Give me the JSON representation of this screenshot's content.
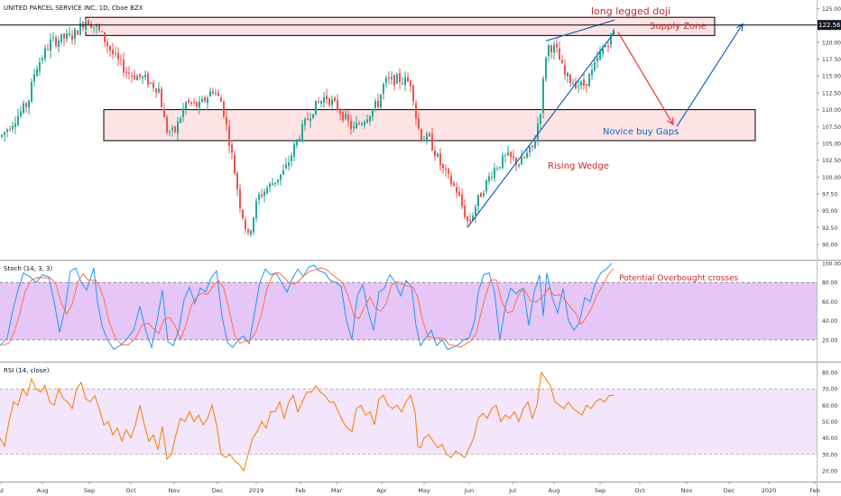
{
  "chart_data": {
    "type": "candlestick",
    "symbol_title": "UNITED PARCEL SERVICE INC, 1D, Cboe BZX",
    "last_price": "122.56",
    "colors": {
      "up": "#26a69a",
      "down": "#ef5350",
      "zone_fill": "#fde3e3",
      "zone_stroke": "#000000",
      "trend_line": "#1565c0",
      "red_arrow": "#e53935",
      "annotation_red": "#c62828",
      "annotation_blue": "#1565c0",
      "stoch_k": "#2196f3",
      "stoch_d": "#ff7043",
      "stoch_band": "#e6c6f7",
      "rsi_line": "#f57c00",
      "rsi_band": "#f3e5fb"
    },
    "x_axis": {
      "ticks": [
        "Jul",
        "Aug",
        "Sep",
        "Oct",
        "Nov",
        "Dec",
        "2019",
        "Feb",
        "Mar",
        "Apr",
        "May",
        "Jun",
        "Jul",
        "Aug",
        "Sep",
        "Oct",
        "Nov",
        "Dec",
        "2020",
        "Feb"
      ]
    },
    "price_panel": {
      "ylim": [
        88,
        126
      ],
      "y_ticks": [
        "125.00",
        "122.50",
        "120.00",
        "117.50",
        "115.00",
        "112.50",
        "110.00",
        "107.50",
        "105.00",
        "102.50",
        "100.00",
        "97.50",
        "95.00",
        "92.50",
        "90.00"
      ],
      "anchors": [
        [
          0,
          106
        ],
        [
          30,
          111
        ],
        [
          38,
          116
        ],
        [
          55,
          120
        ],
        [
          80,
          121
        ],
        [
          95,
          123.5
        ],
        [
          110,
          121.5
        ],
        [
          125,
          118
        ],
        [
          140,
          115.5
        ],
        [
          160,
          114.5
        ],
        [
          175,
          113
        ],
        [
          183,
          107
        ],
        [
          192,
          106.5
        ],
        [
          205,
          111
        ],
        [
          220,
          110.5
        ],
        [
          235,
          113
        ],
        [
          245,
          111
        ],
        [
          255,
          104
        ],
        [
          265,
          96
        ],
        [
          274,
          91
        ],
        [
          285,
          97
        ],
        [
          300,
          99
        ],
        [
          315,
          101
        ],
        [
          330,
          106
        ],
        [
          345,
          110
        ],
        [
          360,
          112
        ],
        [
          375,
          110
        ],
        [
          390,
          107
        ],
        [
          405,
          109
        ],
        [
          418,
          111
        ],
        [
          425,
          114
        ],
        [
          440,
          114.5
        ],
        [
          455,
          114
        ],
        [
          460,
          109
        ],
        [
          465,
          106
        ],
        [
          475,
          105.5
        ],
        [
          490,
          101
        ],
        [
          505,
          98
        ],
        [
          518,
          93
        ],
        [
          530,
          97
        ],
        [
          545,
          101
        ],
        [
          560,
          103
        ],
        [
          575,
          102
        ],
        [
          590,
          104.5
        ],
        [
          598,
          110
        ],
        [
          605,
          119.5
        ],
        [
          615,
          119
        ],
        [
          625,
          115
        ],
        [
          635,
          114
        ],
        [
          645,
          113.5
        ],
        [
          655,
          115.5
        ],
        [
          665,
          118.5
        ],
        [
          677,
          121
        ],
        [
          681,
          122.5
        ]
      ],
      "zones": [
        {
          "name": "supply_zone",
          "x1": 95,
          "x2": 792,
          "y_top": 123.7,
          "y_bottom": 121.0
        },
        {
          "name": "gap_zone",
          "x1": 115,
          "x2": 837,
          "y_top": 110.0,
          "y_bottom": 105.4
        }
      ],
      "lines": [
        {
          "x1": 518,
          "y1": 92.5,
          "x2": 681,
          "y2": 121.5,
          "color": "blue"
        },
        {
          "x1": 605,
          "y1": 120.2,
          "x2": 681,
          "y2": 123.3,
          "color": "blue"
        }
      ],
      "arrows": [
        {
          "x1": 685,
          "y1": 121.5,
          "x2": 746,
          "y2": 107.8,
          "color": "red"
        },
        {
          "x1": 750,
          "y1": 107.5,
          "x2": 823,
          "y2": 122.7,
          "color": "blue"
        }
      ]
    },
    "annotations": {
      "long_legged_doji": "long legged doji",
      "supply_zone": "Supply Zone",
      "novice_buy_gaps": "Novice buy Gaps",
      "rising_wedge": "Rising Wedge",
      "overbought": "Potential Overbought crosses"
    },
    "stoch_panel": {
      "label": "Stoch (14, 3, 3)",
      "ylim": [
        0,
        100
      ],
      "y_ticks": [
        "100.00",
        "80.00",
        "60.00",
        "40.00",
        "20.00"
      ],
      "band": [
        20,
        80
      ],
      "k": [
        [
          0,
          14
        ],
        [
          8,
          22
        ],
        [
          14,
          50
        ],
        [
          20,
          72
        ],
        [
          26,
          90
        ],
        [
          33,
          86
        ],
        [
          40,
          80
        ],
        [
          47,
          88
        ],
        [
          54,
          86
        ],
        [
          60,
          60
        ],
        [
          66,
          28
        ],
        [
          72,
          52
        ],
        [
          78,
          92
        ],
        [
          84,
          95
        ],
        [
          90,
          80
        ],
        [
          96,
          72
        ],
        [
          104,
          95
        ],
        [
          108,
          60
        ],
        [
          113,
          35
        ],
        [
          119,
          20
        ],
        [
          126,
          10
        ],
        [
          133,
          14
        ],
        [
          140,
          20
        ],
        [
          148,
          30
        ],
        [
          155,
          55
        ],
        [
          162,
          28
        ],
        [
          168,
          12
        ],
        [
          174,
          40
        ],
        [
          180,
          72
        ],
        [
          186,
          18
        ],
        [
          192,
          14
        ],
        [
          198,
          30
        ],
        [
          204,
          62
        ],
        [
          210,
          75
        ],
        [
          216,
          58
        ],
        [
          222,
          74
        ],
        [
          228,
          70
        ],
        [
          234,
          85
        ],
        [
          240,
          92
        ],
        [
          246,
          45
        ],
        [
          252,
          17
        ],
        [
          258,
          12
        ],
        [
          264,
          20
        ],
        [
          270,
          24
        ],
        [
          276,
          16
        ],
        [
          282,
          48
        ],
        [
          288,
          80
        ],
        [
          294,
          94
        ],
        [
          300,
          88
        ],
        [
          306,
          90
        ],
        [
          312,
          80
        ],
        [
          318,
          70
        ],
        [
          324,
          84
        ],
        [
          330,
          94
        ],
        [
          336,
          86
        ],
        [
          342,
          96
        ],
        [
          348,
          98
        ],
        [
          354,
          92
        ],
        [
          360,
          90
        ],
        [
          366,
          82
        ],
        [
          372,
          80
        ],
        [
          378,
          76
        ],
        [
          384,
          40
        ],
        [
          390,
          20
        ],
        [
          396,
          66
        ],
        [
          402,
          78
        ],
        [
          408,
          50
        ],
        [
          414,
          30
        ],
        [
          420,
          70
        ],
        [
          426,
          74
        ],
        [
          432,
          88
        ],
        [
          438,
          80
        ],
        [
          444,
          66
        ],
        [
          450,
          82
        ],
        [
          456,
          76
        ],
        [
          461,
          35
        ],
        [
          466,
          14
        ],
        [
          472,
          22
        ],
        [
          478,
          30
        ],
        [
          484,
          14
        ],
        [
          490,
          20
        ],
        [
          496,
          10
        ],
        [
          502,
          12
        ],
        [
          508,
          15
        ],
        [
          514,
          20
        ],
        [
          520,
          22
        ],
        [
          526,
          40
        ],
        [
          530,
          70
        ],
        [
          536,
          88
        ],
        [
          542,
          90
        ],
        [
          548,
          70
        ],
        [
          554,
          20
        ],
        [
          560,
          55
        ],
        [
          566,
          74
        ],
        [
          572,
          68
        ],
        [
          576,
          72
        ],
        [
          580,
          74
        ],
        [
          586,
          35
        ],
        [
          592,
          70
        ],
        [
          598,
          88
        ],
        [
          602,
          45
        ],
        [
          606,
          90
        ],
        [
          612,
          64
        ],
        [
          618,
          48
        ],
        [
          624,
          74
        ],
        [
          630,
          40
        ],
        [
          636,
          30
        ],
        [
          642,
          38
        ],
        [
          648,
          64
        ],
        [
          654,
          60
        ],
        [
          660,
          80
        ],
        [
          666,
          90
        ],
        [
          672,
          94
        ],
        [
          678,
          100
        ]
      ]
    },
    "rsi_panel": {
      "label": "RSI (14, close)",
      "ylim": [
        15,
        85
      ],
      "y_ticks": [
        "80.00",
        "70.00",
        "60.00",
        "50.00",
        "40.00",
        "30.00",
        "20.00"
      ],
      "band": [
        30,
        70
      ],
      "values": [
        [
          0,
          40
        ],
        [
          5,
          35
        ],
        [
          10,
          50
        ],
        [
          15,
          62
        ],
        [
          20,
          60
        ],
        [
          25,
          70
        ],
        [
          30,
          66
        ],
        [
          35,
          76
        ],
        [
          40,
          70
        ],
        [
          45,
          68
        ],
        [
          50,
          72
        ],
        [
          55,
          62
        ],
        [
          60,
          60
        ],
        [
          65,
          70
        ],
        [
          70,
          64
        ],
        [
          75,
          62
        ],
        [
          80,
          58
        ],
        [
          85,
          70
        ],
        [
          90,
          74
        ],
        [
          95,
          64
        ],
        [
          100,
          62
        ],
        [
          105,
          66
        ],
        [
          110,
          58
        ],
        [
          115,
          48
        ],
        [
          120,
          50
        ],
        [
          125,
          42
        ],
        [
          130,
          46
        ],
        [
          135,
          38
        ],
        [
          140,
          45
        ],
        [
          145,
          40
        ],
        [
          150,
          48
        ],
        [
          155,
          60
        ],
        [
          160,
          48
        ],
        [
          165,
          38
        ],
        [
          170,
          42
        ],
        [
          175,
          33
        ],
        [
          180,
          47
        ],
        [
          185,
          27
        ],
        [
          190,
          30
        ],
        [
          195,
          42
        ],
        [
          200,
          52
        ],
        [
          205,
          50
        ],
        [
          210,
          56
        ],
        [
          215,
          50
        ],
        [
          220,
          54
        ],
        [
          225,
          48
        ],
        [
          230,
          52
        ],
        [
          235,
          60
        ],
        [
          240,
          48
        ],
        [
          245,
          30
        ],
        [
          250,
          28
        ],
        [
          255,
          30
        ],
        [
          260,
          26
        ],
        [
          265,
          24
        ],
        [
          270,
          20
        ],
        [
          275,
          30
        ],
        [
          280,
          40
        ],
        [
          285,
          44
        ],
        [
          290,
          50
        ],
        [
          295,
          46
        ],
        [
          300,
          56
        ],
        [
          305,
          56
        ],
        [
          310,
          62
        ],
        [
          315,
          52
        ],
        [
          320,
          62
        ],
        [
          325,
          66
        ],
        [
          330,
          56
        ],
        [
          335,
          62
        ],
        [
          340,
          68
        ],
        [
          345,
          68
        ],
        [
          350,
          72
        ],
        [
          355,
          68
        ],
        [
          360,
          66
        ],
        [
          365,
          62
        ],
        [
          370,
          62
        ],
        [
          375,
          56
        ],
        [
          380,
          50
        ],
        [
          385,
          46
        ],
        [
          390,
          44
        ],
        [
          395,
          58
        ],
        [
          400,
          60
        ],
        [
          405,
          54
        ],
        [
          410,
          56
        ],
        [
          415,
          48
        ],
        [
          420,
          64
        ],
        [
          425,
          66
        ],
        [
          430,
          60
        ],
        [
          435,
          58
        ],
        [
          440,
          60
        ],
        [
          445,
          56
        ],
        [
          450,
          62
        ],
        [
          455,
          66
        ],
        [
          460,
          56
        ],
        [
          463,
          35
        ],
        [
          466,
          34
        ],
        [
          470,
          40
        ],
        [
          475,
          42
        ],
        [
          480,
          38
        ],
        [
          485,
          34
        ],
        [
          490,
          36
        ],
        [
          495,
          30
        ],
        [
          500,
          28
        ],
        [
          505,
          32
        ],
        [
          510,
          30
        ],
        [
          515,
          28
        ],
        [
          520,
          34
        ],
        [
          525,
          40
        ],
        [
          530,
          52
        ],
        [
          535,
          55
        ],
        [
          540,
          52
        ],
        [
          545,
          58
        ],
        [
          550,
          60
        ],
        [
          555,
          50
        ],
        [
          560,
          54
        ],
        [
          565,
          52
        ],
        [
          570,
          56
        ],
        [
          575,
          50
        ],
        [
          580,
          58
        ],
        [
          585,
          62
        ],
        [
          590,
          52
        ],
        [
          595,
          60
        ],
        [
          600,
          80
        ],
        [
          605,
          76
        ],
        [
          610,
          72
        ],
        [
          615,
          62
        ],
        [
          620,
          60
        ],
        [
          625,
          58
        ],
        [
          630,
          62
        ],
        [
          635,
          58
        ],
        [
          640,
          56
        ],
        [
          645,
          54
        ],
        [
          650,
          60
        ],
        [
          655,
          58
        ],
        [
          660,
          62
        ],
        [
          665,
          64
        ],
        [
          670,
          62
        ],
        [
          675,
          66
        ],
        [
          680,
          66
        ]
      ]
    }
  }
}
